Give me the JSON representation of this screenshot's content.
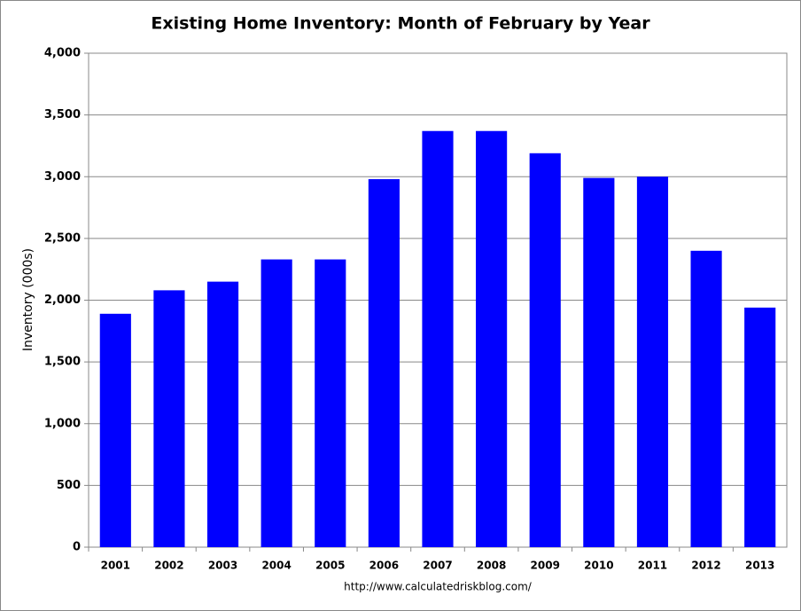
{
  "chart_data": {
    "type": "bar",
    "title": "Existing Home Inventory: Month of February by Year",
    "y_label": "Inventory (000s)",
    "source": "http://www.calculatedriskblog.com/",
    "categories": [
      "2001",
      "2002",
      "2003",
      "2004",
      "2005",
      "2006",
      "2007",
      "2008",
      "2009",
      "2010",
      "2011",
      "2012",
      "2013"
    ],
    "values": [
      1890,
      2080,
      2150,
      2330,
      2330,
      2980,
      3370,
      3370,
      3190,
      2990,
      3000,
      2400,
      1940
    ],
    "color": "#0000ff",
    "ylim": [
      0,
      4000
    ],
    "yticks": [
      0,
      500,
      {
        "value": 1000,
        "label": "1,000"
      },
      {
        "value": 1500,
        "label": "1,500"
      },
      {
        "value": 2000,
        "label": "2,000"
      },
      {
        "value": 2500,
        "label": "2,500"
      },
      {
        "value": 3000,
        "label": "3,000"
      },
      {
        "value": 3500,
        "label": "3,500"
      },
      {
        "value": 4000,
        "label": "4,000"
      }
    ],
    "grid": true
  }
}
